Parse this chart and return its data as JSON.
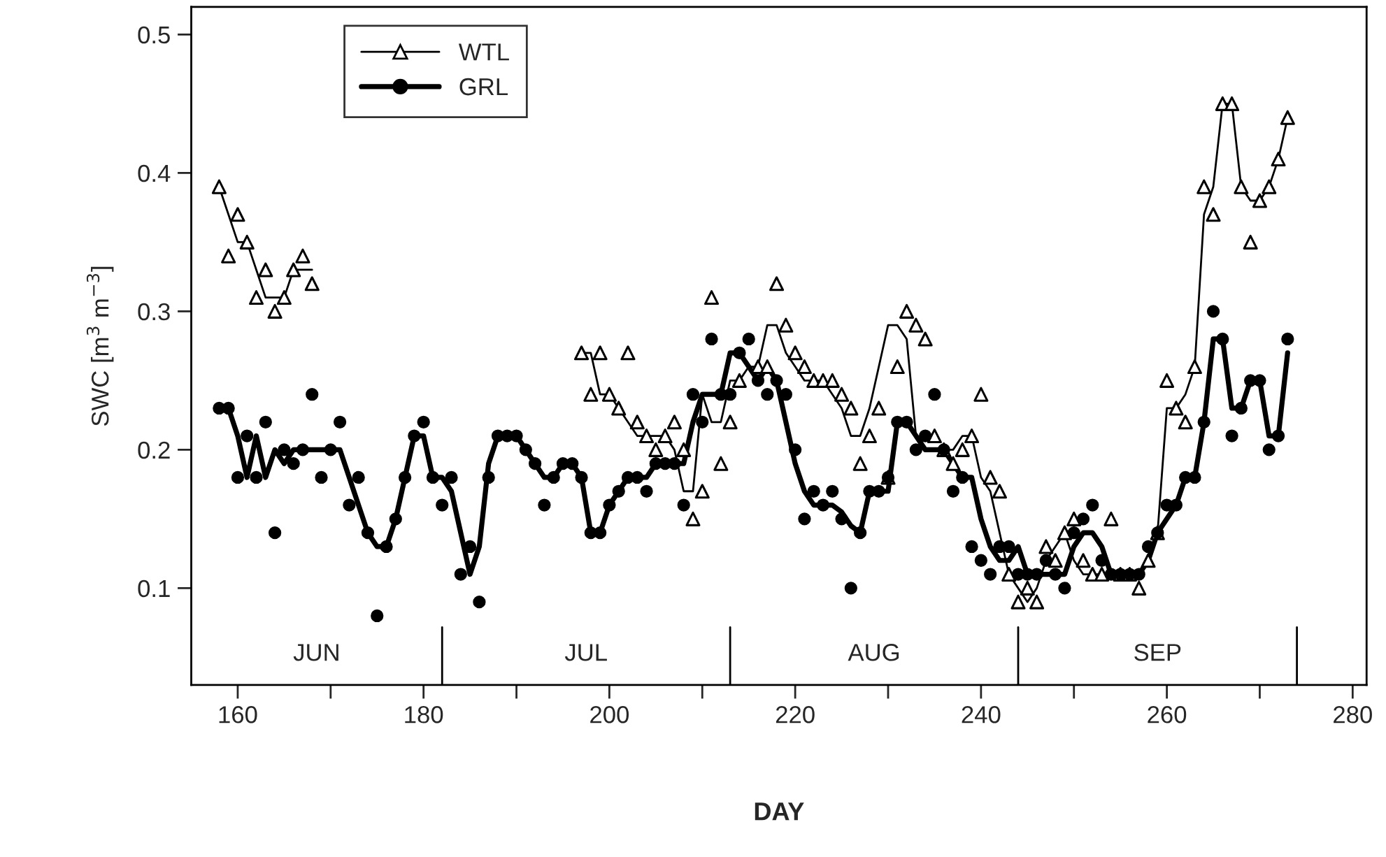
{
  "chart_data": {
    "type": "scatter",
    "xlabel": "DAY",
    "ylabel": "SWC [m$^{3}$ m$^{−3}$]",
    "xlim": [
      155,
      281.5
    ],
    "ylim": [
      0.03,
      0.52
    ],
    "xticks": [
      160,
      {
        "value": 170,
        "label": null
      },
      180,
      {
        "value": 190,
        "label": null
      },
      200,
      {
        "value": 210,
        "label": null
      },
      220,
      {
        "value": 230,
        "label": null
      },
      240,
      {
        "value": 250,
        "label": null
      },
      260,
      {
        "value": 270,
        "label": null
      },
      280
    ],
    "yticks": [
      0.1,
      0.2,
      0.3,
      0.4,
      0.5
    ],
    "grid": false,
    "legend": "top left",
    "series": [
      {
        "name": "WTL",
        "marker": "triangle",
        "color": "#000000",
        "x": [
          158,
          159,
          160,
          161,
          162,
          163,
          164,
          165,
          166,
          167,
          168,
          197,
          198,
          199,
          200,
          201,
          202,
          203,
          204,
          205,
          206,
          207,
          208,
          209,
          210,
          211,
          212,
          213,
          214,
          215,
          216,
          217,
          218,
          219,
          220,
          221,
          222,
          223,
          224,
          225,
          226,
          227,
          228,
          229,
          230,
          231,
          232,
          233,
          234,
          235,
          236,
          237,
          238,
          239,
          240,
          241,
          242,
          243,
          244,
          245,
          246,
          247,
          248,
          249,
          250,
          251,
          252,
          253,
          254,
          255,
          256,
          257,
          258,
          259,
          260,
          261,
          262,
          263,
          264,
          265,
          266,
          267,
          268,
          269,
          270,
          271,
          272,
          273
        ],
        "values": [
          0.39,
          0.34,
          0.37,
          0.35,
          0.31,
          0.33,
          0.3,
          0.31,
          0.33,
          0.34,
          0.32,
          0.27,
          0.24,
          0.27,
          0.24,
          0.23,
          0.27,
          0.22,
          0.21,
          0.2,
          0.21,
          0.22,
          0.2,
          0.15,
          0.17,
          0.31,
          0.19,
          0.22,
          0.25,
          null,
          0.26,
          0.26,
          0.32,
          0.29,
          0.27,
          0.26,
          0.25,
          0.25,
          0.25,
          0.24,
          0.23,
          0.19,
          0.21,
          0.23,
          0.18,
          0.26,
          0.3,
          0.29,
          0.28,
          0.21,
          0.2,
          0.19,
          0.2,
          0.21,
          0.24,
          0.18,
          0.17,
          0.11,
          0.09,
          0.1,
          0.09,
          0.13,
          0.12,
          0.14,
          0.15,
          0.12,
          0.11,
          0.11,
          0.15,
          0.11,
          0.11,
          0.1,
          0.12,
          0.14,
          0.25,
          0.23,
          0.22,
          0.26,
          0.39,
          0.37,
          0.45,
          0.45,
          0.39,
          0.35,
          0.38,
          0.39,
          0.41,
          0.44
        ]
      },
      {
        "type": "line",
        "line_style": "solid",
        "color": "#000000",
        "x": [
          158,
          159,
          160,
          161,
          162,
          163,
          164,
          165,
          166,
          167,
          168,
          169,
          197,
          198,
          199,
          200,
          201,
          202,
          203,
          204,
          205,
          206,
          207,
          208,
          209,
          210,
          211,
          212,
          213,
          214,
          215,
          216,
          217,
          218,
          219,
          220,
          221,
          222,
          223,
          224,
          225,
          226,
          227,
          228,
          229,
          230,
          231,
          232,
          233,
          234,
          235,
          236,
          237,
          238,
          239,
          240,
          241,
          242,
          243,
          244,
          245,
          246,
          247,
          248,
          249,
          250,
          251,
          252,
          253,
          254,
          255,
          256,
          257,
          258,
          259,
          260,
          261,
          262,
          263,
          264,
          265,
          266,
          267,
          268,
          269,
          270,
          271,
          272,
          273
        ],
        "values": [
          0.39,
          0.37,
          0.35,
          0.35,
          0.33,
          0.31,
          0.31,
          0.31,
          0.33,
          0.33,
          0.33,
          null,
          0.27,
          0.27,
          0.24,
          0.24,
          0.23,
          0.22,
          0.21,
          0.21,
          0.21,
          0.21,
          0.2,
          0.17,
          0.17,
          0.24,
          0.22,
          0.22,
          0.25,
          0.25,
          0.26,
          0.26,
          0.29,
          0.29,
          0.27,
          0.26,
          0.25,
          0.25,
          0.25,
          0.24,
          0.23,
          0.21,
          0.21,
          0.23,
          0.26,
          0.29,
          0.29,
          0.28,
          0.21,
          0.2,
          0.2,
          0.2,
          0.2,
          0.21,
          0.21,
          0.18,
          0.17,
          0.14,
          0.11,
          0.1,
          0.09,
          0.1,
          0.12,
          0.13,
          0.14,
          0.12,
          0.11,
          0.11,
          0.11,
          0.11,
          0.11,
          0.11,
          0.11,
          0.12,
          0.14,
          0.23,
          0.23,
          0.24,
          0.26,
          0.37,
          0.39,
          0.45,
          0.45,
          0.39,
          0.38,
          0.38,
          0.39,
          0.41,
          0.44
        ]
      },
      {
        "name": "GRL",
        "marker": "circle",
        "color": "#000000",
        "x": [
          158,
          159,
          160,
          161,
          162,
          163,
          164,
          165,
          166,
          167,
          168,
          169,
          170,
          171,
          172,
          173,
          174,
          175,
          176,
          177,
          178,
          179,
          180,
          181,
          182,
          183,
          184,
          185,
          186,
          187,
          188,
          189,
          190,
          191,
          192,
          193,
          194,
          195,
          196,
          197,
          198,
          199,
          200,
          201,
          202,
          203,
          204,
          205,
          206,
          207,
          208,
          209,
          210,
          211,
          212,
          213,
          214,
          215,
          216,
          217,
          218,
          219,
          220,
          221,
          222,
          223,
          224,
          225,
          226,
          227,
          228,
          229,
          230,
          231,
          232,
          233,
          234,
          235,
          236,
          237,
          238,
          239,
          240,
          241,
          242,
          243,
          244,
          245,
          246,
          247,
          248,
          249,
          250,
          251,
          252,
          253,
          254,
          255,
          256,
          257,
          258,
          259,
          260,
          261,
          262,
          263,
          264,
          265,
          266,
          267,
          268,
          269,
          270,
          271,
          272,
          273
        ],
        "values": [
          0.23,
          0.23,
          0.18,
          0.21,
          0.18,
          0.22,
          0.14,
          0.2,
          0.19,
          0.2,
          0.24,
          0.18,
          0.2,
          0.22,
          0.16,
          0.18,
          0.14,
          0.08,
          0.13,
          0.15,
          0.18,
          0.21,
          0.22,
          0.18,
          0.16,
          0.18,
          0.11,
          0.13,
          0.09,
          0.18,
          0.21,
          0.21,
          0.21,
          0.2,
          0.19,
          0.16,
          0.18,
          0.19,
          0.19,
          0.18,
          0.14,
          0.14,
          0.16,
          0.17,
          0.18,
          0.18,
          0.17,
          0.19,
          0.19,
          0.19,
          0.16,
          0.24,
          0.22,
          0.28,
          0.24,
          0.24,
          0.27,
          0.28,
          0.25,
          0.24,
          0.25,
          0.24,
          0.2,
          0.15,
          0.17,
          0.16,
          0.17,
          0.15,
          0.1,
          0.14,
          0.17,
          0.17,
          0.18,
          0.22,
          0.22,
          0.2,
          0.21,
          0.24,
          0.2,
          0.17,
          0.18,
          0.13,
          0.12,
          0.11,
          0.13,
          0.13,
          0.11,
          0.11,
          0.11,
          0.12,
          0.11,
          0.1,
          0.14,
          0.15,
          0.16,
          0.12,
          0.11,
          0.11,
          0.11,
          0.11,
          0.13,
          0.14,
          0.16,
          0.16,
          0.18,
          0.18,
          0.22,
          0.3,
          0.28,
          0.21,
          0.23,
          0.25,
          0.25,
          0.2,
          0.21,
          0.28
        ]
      },
      {
        "type": "line",
        "line_style": "solid",
        "color": "#000000",
        "x": [
          158,
          159,
          160,
          161,
          162,
          163,
          164,
          165,
          166,
          167,
          168,
          169,
          170,
          171,
          172,
          173,
          174,
          175,
          176,
          177,
          178,
          179,
          180,
          181,
          182,
          183,
          184,
          185,
          186,
          187,
          188,
          189,
          190,
          191,
          192,
          193,
          194,
          195,
          196,
          197,
          198,
          199,
          200,
          201,
          202,
          203,
          204,
          205,
          206,
          207,
          208,
          209,
          210,
          211,
          212,
          213,
          214,
          215,
          216,
          217,
          218,
          219,
          220,
          221,
          222,
          223,
          224,
          225,
          226,
          227,
          228,
          229,
          230,
          231,
          232,
          233,
          234,
          235,
          236,
          237,
          238,
          239,
          240,
          241,
          242,
          243,
          244,
          245,
          246,
          247,
          248,
          249,
          250,
          251,
          252,
          253,
          254,
          255,
          256,
          257,
          258,
          259,
          260,
          261,
          262,
          263,
          264,
          265,
          266,
          267,
          268,
          269,
          270,
          271,
          272,
          273
        ],
        "values": [
          0.23,
          0.23,
          0.21,
          0.18,
          0.21,
          0.18,
          0.2,
          0.19,
          0.2,
          0.2,
          0.2,
          0.2,
          0.2,
          0.2,
          0.18,
          0.16,
          0.14,
          0.13,
          0.13,
          0.15,
          0.18,
          0.21,
          0.21,
          0.18,
          0.18,
          0.17,
          0.14,
          0.11,
          0.13,
          0.19,
          0.21,
          0.21,
          0.21,
          0.2,
          0.19,
          0.18,
          0.18,
          0.19,
          0.19,
          0.18,
          0.14,
          0.14,
          0.16,
          0.17,
          0.18,
          0.18,
          0.18,
          0.19,
          0.19,
          0.19,
          0.19,
          0.22,
          0.24,
          0.24,
          0.24,
          0.27,
          0.27,
          0.26,
          0.25,
          0.26,
          0.25,
          0.22,
          0.19,
          0.17,
          0.16,
          0.16,
          0.16,
          0.155,
          0.145,
          0.14,
          0.17,
          0.17,
          0.17,
          0.22,
          0.22,
          0.21,
          0.2,
          0.2,
          0.2,
          0.19,
          0.18,
          0.18,
          0.15,
          0.13,
          0.12,
          0.12,
          0.13,
          0.11,
          0.11,
          0.11,
          0.11,
          0.11,
          0.13,
          0.14,
          0.14,
          0.13,
          0.11,
          0.11,
          0.11,
          0.11,
          0.12,
          0.14,
          0.15,
          0.16,
          0.18,
          0.18,
          0.22,
          0.28,
          0.28,
          0.23,
          0.23,
          0.25,
          0.25,
          0.21,
          0.21,
          0.27
        ]
      }
    ],
    "ref_lines": [
      {
        "axis": "x",
        "value": 182
      },
      {
        "axis": "x",
        "value": 213
      },
      {
        "axis": "x",
        "value": 244
      },
      {
        "axis": "x",
        "value": 274
      }
    ],
    "annotations": [
      "JUN",
      "JUL",
      "AUG",
      "SEP"
    ]
  }
}
